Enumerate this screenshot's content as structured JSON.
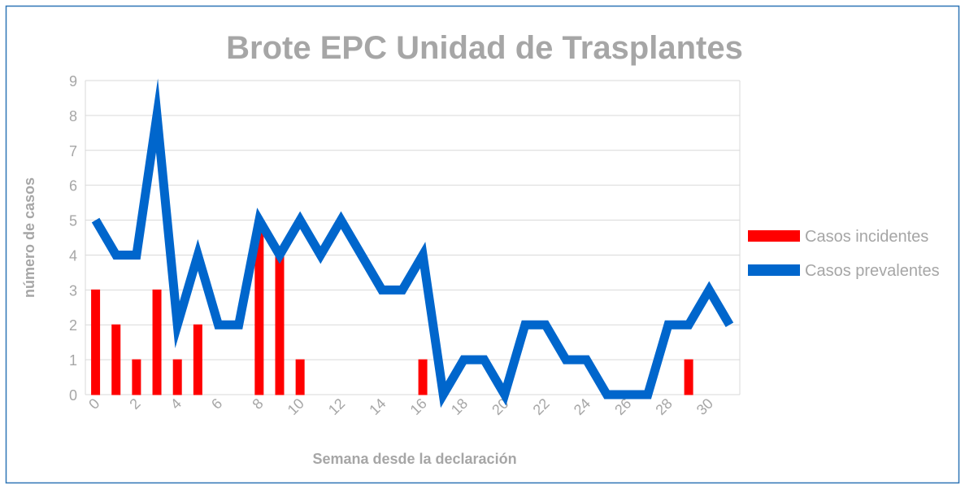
{
  "chart_data": {
    "type": "bar",
    "title": "Brote EPC Unidad de Trasplantes",
    "xlabel": "Semana desde la declaración",
    "ylabel": "número de casos",
    "categories": [
      0,
      null,
      2,
      null,
      4,
      null,
      6,
      null,
      8,
      null,
      10,
      null,
      12,
      null,
      14,
      null,
      16,
      null,
      18,
      null,
      20,
      null,
      22,
      null,
      24,
      null,
      26,
      null,
      28,
      null,
      30,
      null
    ],
    "series": [
      {
        "name": "Casos incidentes",
        "type": "bar",
        "color": "#ff0000",
        "values": [
          3,
          2,
          1,
          3,
          1,
          2,
          0,
          0,
          5,
          4,
          1,
          0,
          0,
          0,
          0,
          0,
          1,
          0,
          0,
          0,
          0,
          0,
          0,
          0,
          0,
          0,
          0,
          0,
          0,
          1,
          0,
          0
        ]
      },
      {
        "name": "Casos prevalentes",
        "type": "line",
        "color": "#0066cc",
        "values": [
          5,
          4,
          4,
          8,
          2,
          4,
          2,
          2,
          5,
          4,
          5,
          4,
          5,
          4,
          3,
          3,
          4,
          0,
          1,
          1,
          0,
          2,
          2,
          1,
          1,
          0,
          0,
          0,
          2,
          2,
          3,
          2
        ]
      }
    ],
    "ylim": [
      0,
      9
    ],
    "yticks": [
      0,
      1,
      2,
      3,
      4,
      5,
      6,
      7,
      8,
      9
    ],
    "grid": true,
    "legend": "right"
  }
}
